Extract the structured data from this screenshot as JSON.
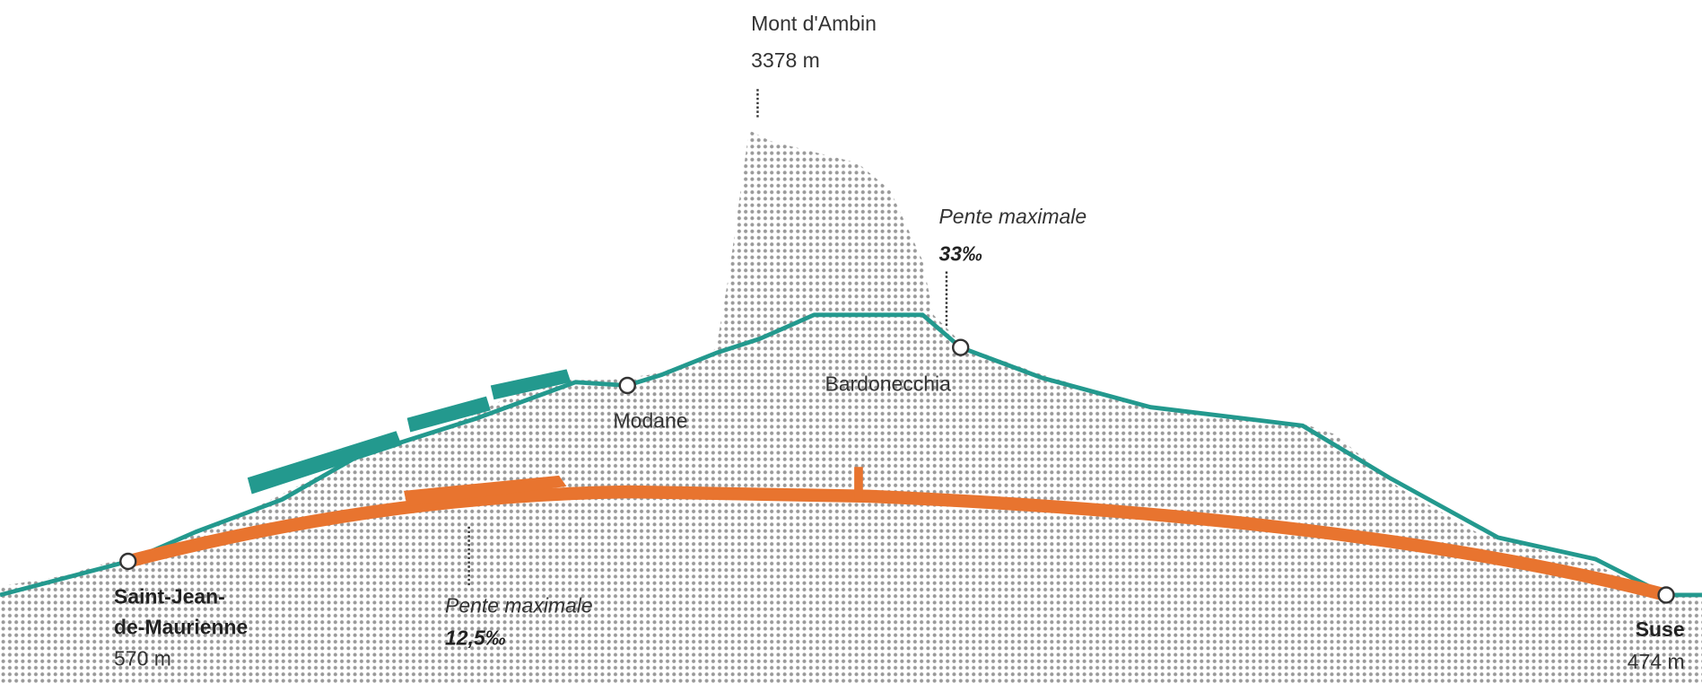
{
  "peak": {
    "name": "Mont d'Ambin",
    "elevation": "3378 m"
  },
  "slope_high": {
    "label": "Pente maximale",
    "value": "33‰"
  },
  "slope_low": {
    "label": "Pente maximale",
    "value": "12,5‰"
  },
  "stations": [
    {
      "name_lines": [
        "Saint-Jean-",
        "de-Maurienne"
      ],
      "elevation": "570 m"
    },
    {
      "name": "Modane"
    },
    {
      "name": "Bardonecchia"
    },
    {
      "name": "Suse",
      "elevation": "474 m"
    }
  ]
}
